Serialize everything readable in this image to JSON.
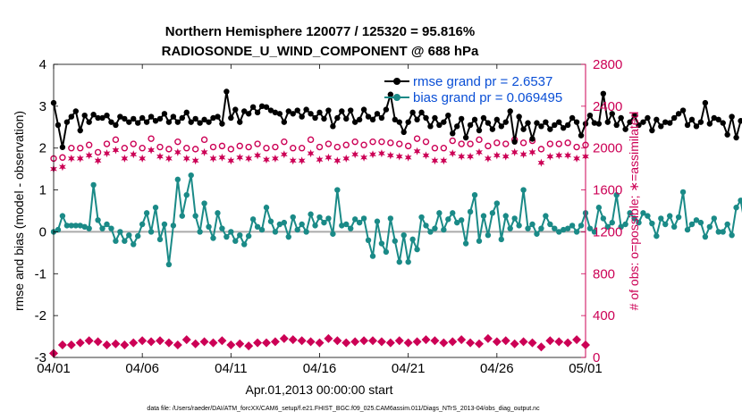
{
  "chart_data": {
    "type": "line",
    "title_line1": "Northern Hemisphere 120077 / 125320 = 95.816%",
    "title_line2": "RADIOSONDE_U_WIND_COMPONENT @ 688 hPa",
    "xlabel": "Apr.01,2013 00:00:00 start",
    "ylabel_left": "rmse and bias (model - observation)",
    "ylabel_right": "# of obs: o=possible; ∗=assimilated",
    "footnote": "data file: /Users/raeder/DAI/ATM_forcXX/CAM6_setup/f.e21.FHIST_BGC.f09_025.CAM6assim.011/Diags_NTrS_2013-04/obs_diag_output.nc",
    "x_ticks": [
      "04/01",
      "04/06",
      "04/11",
      "04/16",
      "04/21",
      "04/26",
      "05/01"
    ],
    "y_left_ticks": [
      "-3",
      "-2",
      "-1",
      "0",
      "1",
      "2",
      "3",
      "4"
    ],
    "y_right_ticks": [
      "0",
      "400",
      "800",
      "1200",
      "1600",
      "2000",
      "2400",
      "2800"
    ],
    "xlim_days": [
      0,
      30
    ],
    "ylim_left": [
      -3,
      4
    ],
    "ylim_right": [
      0,
      2800
    ],
    "colors": {
      "rmse": "#000000",
      "bias": "#1a8a87",
      "obs": "#cc0055",
      "zero_line": "#aaaaaa",
      "legend_text": "#0a4fd6",
      "right_axis": "#cc0055"
    },
    "legend": [
      {
        "key": "rmse",
        "label": "rmse grand pr = 2.6537"
      },
      {
        "key": "bias",
        "label": "bias grand pr = 0.069495"
      }
    ],
    "series": [
      {
        "name": "rmse",
        "x_step_days": 0.25,
        "values": [
          3.08,
          2.55,
          2.02,
          2.62,
          2.75,
          2.88,
          2.42,
          2.78,
          2.62,
          2.8,
          2.72,
          2.72,
          2.78,
          2.62,
          2.55,
          2.75,
          2.7,
          2.62,
          2.7,
          2.6,
          2.72,
          2.62,
          2.75,
          2.65,
          2.7,
          2.82,
          2.62,
          2.75,
          2.62,
          2.72,
          2.85,
          2.62,
          2.7,
          2.6,
          2.68,
          2.62,
          2.72,
          2.75,
          2.58,
          3.35,
          2.72,
          2.92,
          2.62,
          2.88,
          2.82,
          2.98,
          2.85,
          3.0,
          2.98,
          2.9,
          2.85,
          2.82,
          2.62,
          2.88,
          2.82,
          2.9,
          2.75,
          2.92,
          2.82,
          2.72,
          2.85,
          2.7,
          2.9,
          2.52,
          2.72,
          2.88,
          2.7,
          2.9,
          2.62,
          2.68,
          2.92,
          2.75,
          2.68,
          2.82,
          2.72,
          2.92,
          3.28,
          2.68,
          2.62,
          2.38,
          2.62,
          2.85,
          2.68,
          2.85,
          2.72,
          2.52,
          2.72,
          2.55,
          2.62,
          2.78,
          2.35,
          2.52,
          2.7,
          2.25,
          2.55,
          2.68,
          2.42,
          2.72,
          2.6,
          2.45,
          2.68,
          2.52,
          2.62,
          2.88,
          2.15,
          2.75,
          2.45,
          2.6,
          2.22,
          2.6,
          2.52,
          2.62,
          2.45,
          2.55,
          2.62,
          2.48,
          2.55,
          2.72,
          2.62,
          2.3,
          2.58,
          2.78,
          2.6,
          2.58,
          3.3,
          2.62,
          2.82,
          2.55,
          2.72,
          2.45,
          2.62,
          2.78,
          2.55,
          2.62,
          2.72,
          2.42,
          2.68,
          2.52,
          2.62,
          2.6,
          2.72,
          2.82,
          2.9,
          2.55,
          2.68,
          2.52,
          2.62,
          3.08,
          2.58,
          2.72,
          2.68,
          2.6,
          2.32,
          2.75,
          2.25,
          2.65,
          2.68,
          2.62
        ]
      },
      {
        "name": "bias",
        "x_step_days": 0.25,
        "values": [
          0.0,
          0.05,
          0.38,
          0.15,
          0.15,
          0.15,
          0.15,
          0.12,
          0.08,
          1.12,
          0.28,
          0.08,
          0.18,
          0.08,
          -0.22,
          0.0,
          -0.22,
          -0.08,
          -0.3,
          -0.1,
          0.18,
          0.45,
          0.0,
          0.58,
          -0.18,
          0.18,
          -0.78,
          0.15,
          1.25,
          0.38,
          0.88,
          1.35,
          0.38,
          0.0,
          0.68,
          0.12,
          -0.15,
          0.45,
          0.08,
          -0.12,
          0.0,
          -0.22,
          -0.08,
          -0.3,
          -0.1,
          0.3,
          0.12,
          0.05,
          0.58,
          0.25,
          0.0,
          0.18,
          0.22,
          -0.12,
          0.35,
          0.05,
          0.18,
          0.0,
          0.42,
          0.15,
          0.35,
          0.22,
          0.32,
          -0.05,
          1.0,
          0.15,
          0.18,
          0.08,
          0.3,
          0.22,
          0.32,
          -0.2,
          -0.58,
          0.25,
          -0.28,
          -0.48,
          0.32,
          -0.22,
          -0.72,
          -0.08,
          -0.72,
          -0.18,
          -0.42,
          0.35,
          0.15,
          0.0,
          0.08,
          0.45,
          0.05,
          0.3,
          0.45,
          0.22,
          0.28,
          -0.28,
          0.48,
          0.88,
          -0.22,
          0.38,
          -0.08,
          0.45,
          0.68,
          -0.18,
          0.38,
          0.08,
          0.32,
          0.15,
          1.0,
          0.08,
          0.18,
          -0.05,
          0.08,
          0.38,
          0.18,
          0.08,
          0.0,
          0.05,
          0.08,
          0.15,
          0.0,
          0.15,
          0.45,
          0.08,
          0.0,
          0.58,
          0.32,
          0.12,
          0.22,
          0.88,
          0.12,
          0.18,
          0.45,
          0.32,
          0.22,
          0.45,
          0.38,
          0.2,
          -0.1,
          0.32,
          0.18,
          0.38,
          0.12,
          0.35,
          0.95,
          0.05,
          0.18,
          0.28,
          0.22,
          -0.12,
          0.12,
          0.32,
          0.0,
          0.0,
          0.18,
          -0.08,
          0.58,
          0.75,
          0.15,
          0.5,
          0.2,
          -0.32,
          -0.05,
          -0.65
        ]
      },
      {
        "name": "possible obs",
        "x_step_days": 0.5,
        "values": [
          1900,
          1910,
          2000,
          2000,
          2030,
          1960,
          2040,
          2080,
          2000,
          2040,
          2000,
          2090,
          2010,
          1990,
          2060,
          2000,
          1990,
          2080,
          2010,
          2020,
          1990,
          2020,
          2010,
          2040,
          2000,
          2010,
          2060,
          2000,
          2000,
          2080,
          2010,
          2040,
          2010,
          2030,
          2060,
          2030,
          2060,
          2060,
          2050,
          2040,
          2020,
          2090,
          2060,
          2000,
          2000,
          2070,
          2040,
          2040,
          2080,
          2020,
          2050,
          2040,
          2080,
          2050,
          2070,
          1990,
          2040,
          2040,
          2050,
          2010,
          2030
        ]
      },
      {
        "name": "assimilated obs",
        "x_step_days": 0.5,
        "values": [
          1800,
          1820,
          1900,
          1900,
          1930,
          1880,
          1950,
          1980,
          1900,
          1940,
          1900,
          1980,
          1920,
          1900,
          1960,
          1900,
          1880,
          1960,
          1900,
          1910,
          1880,
          1910,
          1900,
          1930,
          1890,
          1900,
          1940,
          1880,
          1880,
          1950,
          1890,
          1910,
          1880,
          1900,
          1940,
          1910,
          1940,
          1950,
          1930,
          1920,
          1910,
          1970,
          1930,
          1880,
          1880,
          1950,
          1920,
          1920,
          1960,
          1900,
          1930,
          1920,
          1960,
          1940,
          1960,
          1860,
          1920,
          1930,
          1930,
          1900,
          1920
        ]
      },
      {
        "name": "obs bottom markers",
        "x_step_days": 0.5,
        "values": [
          40,
          120,
          120,
          140,
          160,
          150,
          120,
          130,
          120,
          140,
          160,
          150,
          160,
          140,
          120,
          170,
          130,
          150,
          140,
          160,
          120,
          130,
          110,
          140,
          140,
          150,
          180,
          170,
          160,
          150,
          140,
          180,
          160,
          140,
          150,
          160,
          160,
          150,
          140,
          160,
          140,
          150,
          170,
          160,
          140,
          150,
          170,
          140,
          130,
          180,
          150,
          160,
          130,
          150,
          140,
          100,
          160,
          150,
          140,
          170,
          120
        ]
      }
    ]
  }
}
